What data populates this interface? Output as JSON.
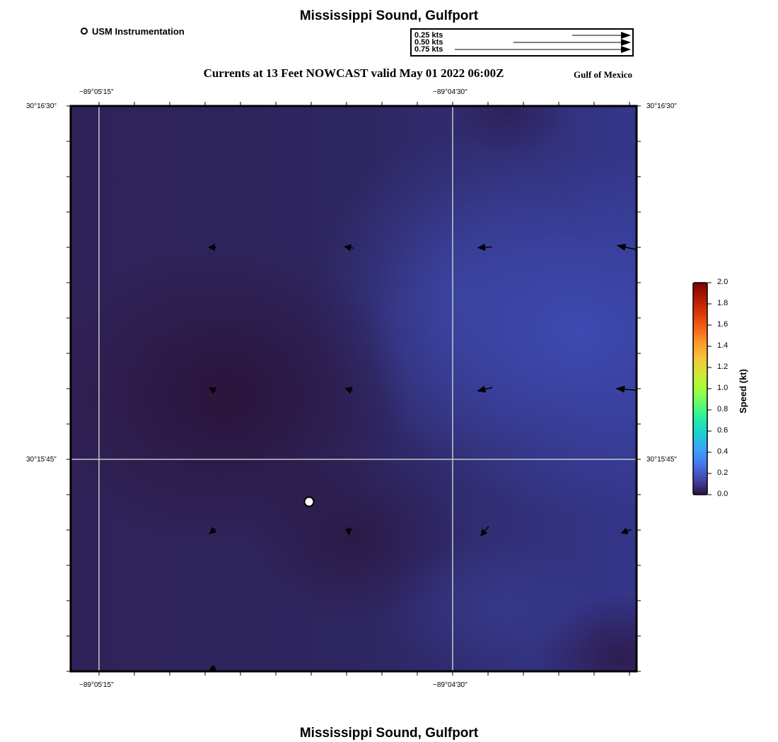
{
  "header": {
    "title": "Mississippi Sound, Gulfport",
    "subtitle": "Currents at 13 Feet NOWCAST valid May 01 2022 06:00Z",
    "region": "Gulf of Mexico",
    "footer_title": "Mississippi Sound, Gulfport"
  },
  "legend": {
    "marker_label": "USM Instrumentation",
    "scale_vectors": [
      {
        "label": "0.25 kts",
        "speed": 0.25
      },
      {
        "label": "0.50 kts",
        "speed": 0.5
      },
      {
        "label": "0.75 kts",
        "speed": 0.75
      }
    ]
  },
  "axes": {
    "lon_ticks": [
      "−89°05'15\"",
      "−89°04'30\""
    ],
    "lat_ticks": [
      "30°16'30\"",
      "30°15'45\""
    ]
  },
  "colorbar": {
    "title": "Speed (kt)",
    "ticks": [
      "0.0",
      "0.2",
      "0.4",
      "0.6",
      "0.8",
      "1.0",
      "1.2",
      "1.4",
      "1.6",
      "1.8",
      "2.0"
    ],
    "range": [
      0,
      2.0
    ],
    "colors": [
      "#30123b",
      "#4145ab",
      "#4675ed",
      "#39a2fc",
      "#1bcfd4",
      "#24eca6",
      "#61fc6c",
      "#a4fc3b",
      "#d1e834",
      "#f3c63a",
      "#fe9b2d",
      "#f36315",
      "#d93806",
      "#b11901",
      "#7a0402"
    ]
  },
  "map": {
    "colors": {
      "dark": "#2e1a45",
      "mid": "#2f2a63",
      "light": "#3c46a6",
      "grid": "#c8c8c8",
      "marker_fill": "#ffffff"
    },
    "vectors": [
      {
        "row": 0,
        "col": 0,
        "angle_deg": 180,
        "speed_kt": 0.05
      },
      {
        "row": 0,
        "col": 1,
        "angle_deg": 170,
        "speed_kt": 0.06
      },
      {
        "row": 0,
        "col": 2,
        "angle_deg": 183,
        "speed_kt": 0.09
      },
      {
        "row": 0,
        "col": 3,
        "angle_deg": 168,
        "speed_kt": 0.12
      },
      {
        "row": 1,
        "col": 0,
        "angle_deg": 155,
        "speed_kt": 0.05
      },
      {
        "row": 1,
        "col": 1,
        "angle_deg": 160,
        "speed_kt": 0.05
      },
      {
        "row": 1,
        "col": 2,
        "angle_deg": 193,
        "speed_kt": 0.1
      },
      {
        "row": 1,
        "col": 3,
        "angle_deg": 175,
        "speed_kt": 0.13
      },
      {
        "row": 2,
        "col": 0,
        "angle_deg": 220,
        "speed_kt": 0.05
      },
      {
        "row": 2,
        "col": 1,
        "angle_deg": 275,
        "speed_kt": 0.05
      },
      {
        "row": 2,
        "col": 2,
        "angle_deg": 230,
        "speed_kt": 0.08
      },
      {
        "row": 2,
        "col": 3,
        "angle_deg": 200,
        "speed_kt": 0.07
      },
      {
        "row": 3,
        "col": 0,
        "angle_deg": 210,
        "speed_kt": 0.05
      }
    ]
  }
}
